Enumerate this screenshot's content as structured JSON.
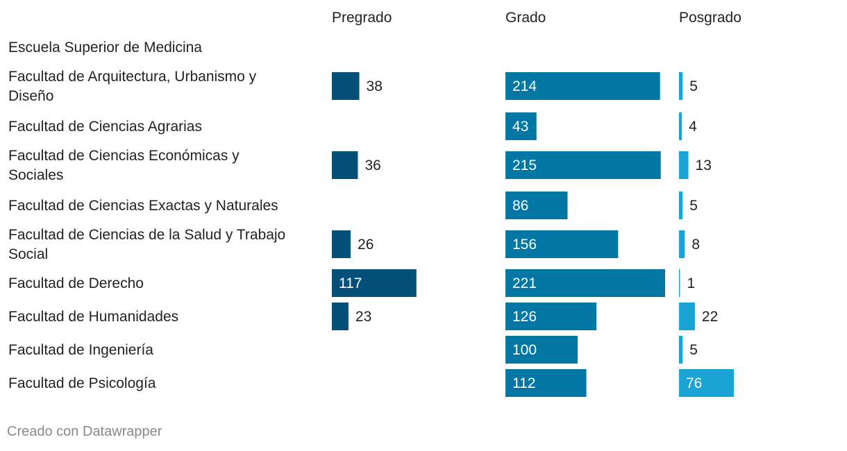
{
  "chart_data": {
    "type": "bar",
    "orientation": "horizontal",
    "layout": "split-bars",
    "title": "",
    "categories": [
      [
        "Escuela Superior de Medicina"
      ],
      [
        "Facultad de Arquitectura, Urbanismo y",
        "Diseño"
      ],
      [
        "Facultad de Ciencias Agrarias"
      ],
      [
        "Facultad de Ciencias Económicas y",
        "Sociales"
      ],
      [
        "Facultad de Ciencias Exactas y Naturales"
      ],
      [
        "Facultad de Ciencias de la Salud y Trabajo",
        "Social"
      ],
      [
        "Facultad de Derecho"
      ],
      [
        "Facultad de Humanidades"
      ],
      [
        "Facultad de Ingeniería"
      ],
      [
        "Facultad de Psicología"
      ]
    ],
    "series": [
      {
        "name": "Pregrado",
        "color": "#05507a",
        "values": [
          null,
          38,
          null,
          36,
          null,
          26,
          117,
          23,
          null,
          null
        ]
      },
      {
        "name": "Grado",
        "color": "#0277a4",
        "values": [
          null,
          214,
          43,
          215,
          86,
          156,
          221,
          126,
          100,
          112
        ]
      },
      {
        "name": "Posgrado",
        "color": "#19a4d3",
        "values": [
          null,
          5,
          4,
          13,
          5,
          8,
          1,
          22,
          5,
          76
        ]
      }
    ],
    "xlim": [
      0,
      221
    ],
    "label_color_inside": "#ffffff",
    "label_color_outside": "#222222"
  },
  "footer": {
    "credit": "Creado con Datawrapper"
  }
}
